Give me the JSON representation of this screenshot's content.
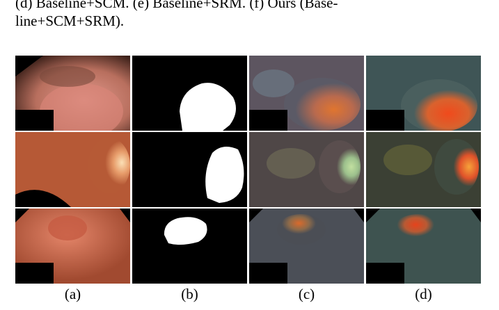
{
  "caption": {
    "line1": "(d) Baseline+SCM. (e) Baseline+SRM. (f) Ours (Base-",
    "line2": "line+SCM+SRM)."
  },
  "columns": [
    {
      "label": "(a)",
      "content": "colonoscopy image"
    },
    {
      "label": "(b)",
      "content": "ground-truth mask"
    },
    {
      "label": "(c)",
      "content": "attention map overlay"
    },
    {
      "label": "(d)",
      "content": "attention map overlay"
    }
  ],
  "rows": 3
}
